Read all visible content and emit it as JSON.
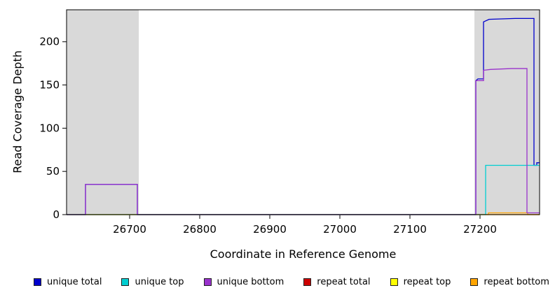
{
  "chart_data": {
    "type": "line",
    "title": "",
    "xlabel": "Coordinate in Reference Genome",
    "ylabel": "Read Coverage Depth",
    "xlim": [
      26610,
      27285
    ],
    "ylim": [
      0,
      237
    ],
    "x_ticks": [
      26700,
      26800,
      26900,
      27000,
      27100,
      27200
    ],
    "y_ticks": [
      0,
      50,
      100,
      150,
      200
    ],
    "grid": false,
    "plot_background": "#ffffff",
    "shaded_regions": [
      {
        "x0": 26610,
        "x1": 26713,
        "color": "#d9d9d9"
      },
      {
        "x0": 27192,
        "x1": 27285,
        "color": "#d9d9d9"
      }
    ],
    "draw_order": [
      "repeat total",
      "repeat top",
      "repeat bottom",
      "unique total",
      "unique top",
      "unique bottom"
    ],
    "series": [
      {
        "name": "unique total",
        "color": "#0000cd",
        "points": [
          [
            26610,
            0
          ],
          [
            26637,
            0
          ],
          [
            26637,
            35
          ],
          [
            26711,
            35
          ],
          [
            26711,
            0
          ],
          [
            27194,
            0
          ],
          [
            27194,
            155
          ],
          [
            27197,
            157
          ],
          [
            27205,
            157
          ],
          [
            27205,
            223
          ],
          [
            27213,
            226
          ],
          [
            27250,
            227
          ],
          [
            27277,
            227
          ],
          [
            27277,
            57
          ],
          [
            27281,
            57
          ],
          [
            27281,
            60
          ],
          [
            27285,
            60
          ]
        ]
      },
      {
        "name": "unique top",
        "color": "#00ced1",
        "points": [
          [
            26610,
            0
          ],
          [
            27208,
            0
          ],
          [
            27208,
            57
          ],
          [
            27285,
            57
          ]
        ]
      },
      {
        "name": "unique bottom",
        "color": "#9932cc",
        "points": [
          [
            26610,
            0
          ],
          [
            26637,
            0
          ],
          [
            26637,
            35
          ],
          [
            26711,
            35
          ],
          [
            26711,
            0
          ],
          [
            27194,
            0
          ],
          [
            27194,
            155
          ],
          [
            27205,
            155
          ],
          [
            27205,
            167
          ],
          [
            27215,
            168
          ],
          [
            27245,
            169
          ],
          [
            27267,
            169
          ],
          [
            27267,
            2
          ],
          [
            27285,
            2
          ]
        ]
      },
      {
        "name": "repeat total",
        "color": "#cd0000",
        "points": [
          [
            26610,
            0
          ],
          [
            27285,
            0
          ]
        ]
      },
      {
        "name": "repeat top",
        "color": "#ffff00",
        "points": [
          [
            26610,
            0
          ],
          [
            27285,
            0
          ]
        ]
      },
      {
        "name": "repeat bottom",
        "color": "#ffa500",
        "points": [
          [
            26610,
            0
          ],
          [
            27212,
            0
          ],
          [
            27212,
            2
          ],
          [
            27268,
            2
          ],
          [
            27268,
            0
          ],
          [
            27285,
            0
          ]
        ]
      }
    ],
    "legend": {
      "position": "bottom",
      "entries": [
        {
          "label": "unique total",
          "color": "#0000cd"
        },
        {
          "label": "unique top",
          "color": "#00ced1"
        },
        {
          "label": "unique bottom",
          "color": "#9932cc"
        },
        {
          "label": "repeat total",
          "color": "#cd0000"
        },
        {
          "label": "repeat top",
          "color": "#ffff00"
        },
        {
          "label": "repeat bottom",
          "color": "#ffa500"
        }
      ]
    }
  }
}
